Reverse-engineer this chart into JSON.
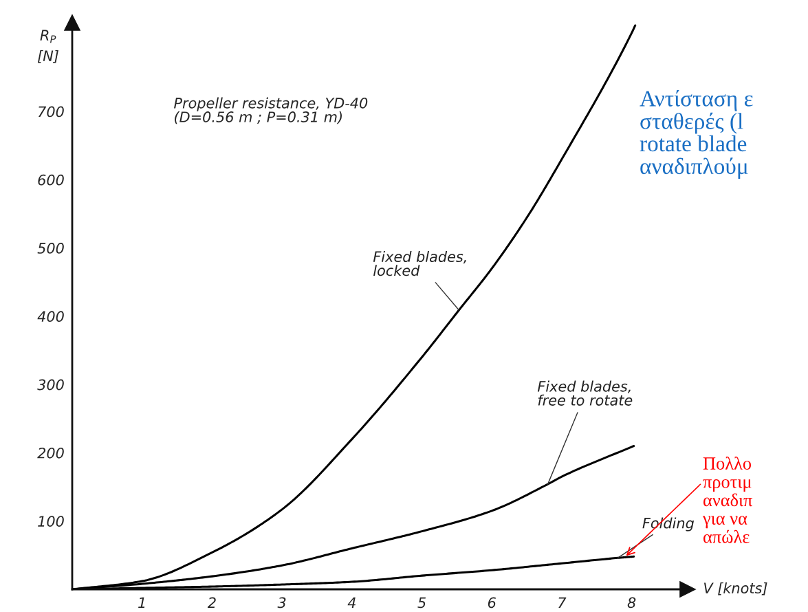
{
  "chart_data": {
    "type": "line",
    "title": "Propeller resistance, YD-40\n(D=0.56 m ; P=0.31 m)",
    "xlabel": "V [knots]",
    "ylabel": "R$_{P}$\n[N]",
    "xlim": [
      0,
      8.8
    ],
    "ylim": [
      0,
      830
    ],
    "xticks": [
      1,
      2,
      3,
      4,
      5,
      6,
      7,
      8
    ],
    "yticks": [
      100,
      200,
      300,
      400,
      500,
      600,
      700
    ],
    "grid": false,
    "legend": false,
    "marker": "none",
    "line_style": "solid",
    "series": [
      {
        "name": "Fixed blades,\nlocked",
        "color": "#000000",
        "x": [
          0,
          1,
          2,
          3,
          4,
          5,
          5.53,
          6,
          6.51,
          7,
          8,
          8.05
        ],
        "values": [
          0,
          12,
          54,
          117,
          220,
          340,
          409,
          470,
          546,
          630,
          815,
          826
        ]
      },
      {
        "name": "Fixed blades,\nfree to rotate",
        "color": "#000000",
        "x": [
          0,
          1,
          2,
          3,
          4,
          5,
          6,
          6.8,
          7,
          8.03
        ],
        "values": [
          0,
          8,
          19,
          35,
          60,
          85,
          115,
          154,
          165,
          210
        ]
      },
      {
        "name": "Folding",
        "color": "#000000",
        "x": [
          0,
          1,
          2,
          3,
          4,
          5,
          6,
          7,
          7.8,
          8.03
        ],
        "values": [
          0,
          2,
          4,
          7,
          11,
          20,
          28,
          38,
          46,
          48
        ]
      }
    ],
    "annotations": [
      "Αντίσταση ε\nσταθερές (l\nrotate blade\nαναδιπλούμ",
      {
        "text": "Πολλο\nπροτιμ\nαναδιπ\nγια να\nαπώλε",
        "x": 7.9,
        "y": 47
      }
    ]
  }
}
